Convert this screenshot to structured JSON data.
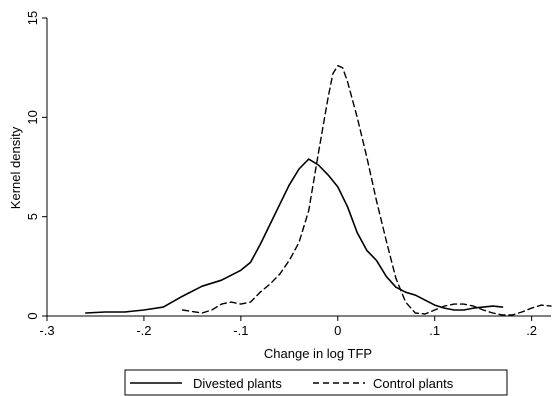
{
  "chart_data": {
    "type": "line",
    "title": "",
    "xlabel": "Change in log TFP",
    "ylabel": "Kernel density",
    "xlim": [
      -0.3,
      0.22
    ],
    "ylim": [
      0,
      15
    ],
    "xticks": [
      -0.3,
      -0.2,
      -0.1,
      0,
      0.1,
      0.2
    ],
    "xtick_labels": [
      "-.3",
      "-.2",
      "-.1",
      "0",
      ".1",
      ".2"
    ],
    "yticks": [
      0,
      5,
      10,
      15
    ],
    "ytick_labels": [
      "0",
      "5",
      "10",
      "15"
    ],
    "grid": false,
    "legend_position": "bottom",
    "series": [
      {
        "name": "Divested plants",
        "line_style": "solid",
        "color": "#000000",
        "x": [
          -0.26,
          -0.24,
          -0.22,
          -0.2,
          -0.18,
          -0.16,
          -0.14,
          -0.12,
          -0.1,
          -0.09,
          -0.08,
          -0.07,
          -0.06,
          -0.05,
          -0.04,
          -0.03,
          -0.02,
          -0.01,
          0,
          0.01,
          0.02,
          0.03,
          0.04,
          0.05,
          0.06,
          0.07,
          0.08,
          0.09,
          0.1,
          0.11,
          0.12,
          0.13,
          0.14,
          0.15,
          0.16,
          0.17
        ],
        "y": [
          0.15,
          0.2,
          0.2,
          0.3,
          0.45,
          1.0,
          1.5,
          1.8,
          2.3,
          2.7,
          3.6,
          4.6,
          5.6,
          6.6,
          7.4,
          7.9,
          7.6,
          7.1,
          6.5,
          5.5,
          4.2,
          3.3,
          2.8,
          2.0,
          1.45,
          1.2,
          1.05,
          0.8,
          0.55,
          0.4,
          0.3,
          0.3,
          0.4,
          0.45,
          0.5,
          0.45
        ]
      },
      {
        "name": "Control plants",
        "line_style": "dashed",
        "color": "#000000",
        "x": [
          -0.16,
          -0.14,
          -0.13,
          -0.12,
          -0.11,
          -0.1,
          -0.09,
          -0.08,
          -0.07,
          -0.06,
          -0.05,
          -0.04,
          -0.03,
          -0.02,
          -0.01,
          -0.005,
          0,
          0.005,
          0.01,
          0.02,
          0.03,
          0.04,
          0.05,
          0.06,
          0.07,
          0.08,
          0.09,
          0.1,
          0.11,
          0.12,
          0.13,
          0.14,
          0.15,
          0.16,
          0.17,
          0.18,
          0.19,
          0.2,
          0.21,
          0.22
        ],
        "y": [
          0.3,
          0.15,
          0.3,
          0.6,
          0.7,
          0.6,
          0.7,
          1.2,
          1.6,
          2.1,
          2.8,
          3.7,
          5.3,
          8.2,
          11.0,
          12.2,
          12.6,
          12.5,
          11.8,
          10.0,
          8.0,
          5.8,
          3.8,
          1.9,
          0.7,
          0.15,
          0.1,
          0.3,
          0.5,
          0.6,
          0.6,
          0.5,
          0.3,
          0.15,
          0.05,
          0.05,
          0.2,
          0.4,
          0.55,
          0.5
        ]
      }
    ]
  }
}
